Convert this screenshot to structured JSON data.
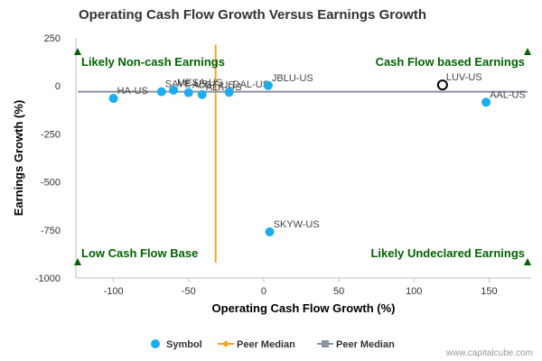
{
  "chart_data": {
    "type": "scatter",
    "title": "Operating Cash Flow Growth Versus Earnings Growth",
    "xlabel": "Operating Cash Flow Growth (%)",
    "ylabel": "Earnings Growth (%)",
    "xlim": [
      -125,
      178
    ],
    "ylim": [
      -1000,
      250
    ],
    "xticks": [
      -100,
      -50,
      0,
      50,
      100,
      150
    ],
    "yticks": [
      250,
      0,
      -250,
      -500,
      -750,
      -1000
    ],
    "ytick_labels": [
      "250",
      "0",
      "-250",
      "-500",
      "-750",
      "-1000"
    ],
    "points": [
      {
        "name": "HA-US",
        "x": -100,
        "y": -65,
        "highlight": false
      },
      {
        "name": "SAVE-US",
        "x": -68,
        "y": -30,
        "highlight": false
      },
      {
        "name": "MESA-US",
        "x": -60,
        "y": -22,
        "highlight": false
      },
      {
        "name": "ALGT-US",
        "x": -50,
        "y": -35,
        "highlight": false
      },
      {
        "name": "ALK-US",
        "x": -41,
        "y": -45,
        "highlight": false
      },
      {
        "name": "DAL-US",
        "x": -23,
        "y": -33,
        "highlight": false
      },
      {
        "name": "JBLU-US",
        "x": 3,
        "y": 2,
        "highlight": false
      },
      {
        "name": "SKYW-US",
        "x": 4,
        "y": -760,
        "highlight": false
      },
      {
        "name": "LUV-US",
        "x": 119,
        "y": 5,
        "highlight": true
      },
      {
        "name": "AAL-US",
        "x": 148,
        "y": -85,
        "highlight": false
      }
    ],
    "peer_median_x": -32,
    "peer_median_y": -30,
    "quadrant_labels": {
      "top_left": "Likely Non-cash Earnings",
      "top_right": "Cash Flow based Earnings",
      "bottom_left": "Low Cash Flow Base",
      "bottom_right": "Likely Undeclared Earnings"
    },
    "legend": [
      {
        "label": "Symbol",
        "color": "#1aadf0",
        "marker": "circle"
      },
      {
        "label": "Peer Median",
        "color": "#f5a623",
        "marker": "diamond"
      },
      {
        "label": "Peer Median",
        "color": "#8a93a0",
        "marker": "square"
      }
    ],
    "legend_position": "bottom",
    "colors": {
      "symbol": "#1aadf0",
      "median_x": "#f5a623",
      "median_y": "#8a93a0",
      "quadrant_text": "#006400"
    },
    "credit": "www.capitalcube.com"
  }
}
